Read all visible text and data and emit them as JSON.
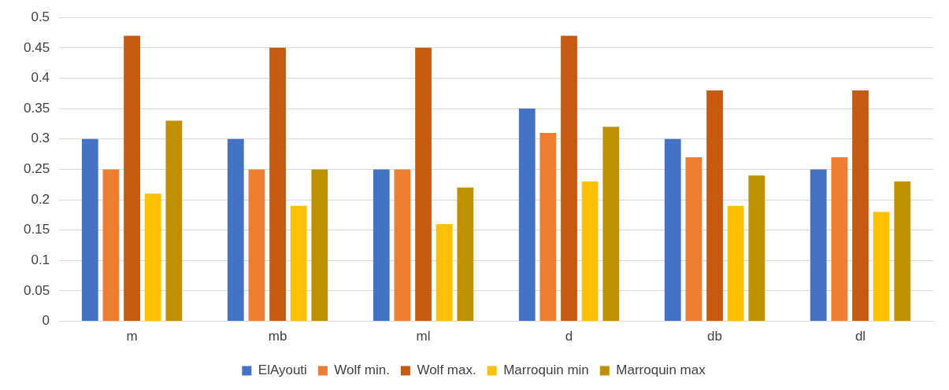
{
  "chart_data": {
    "type": "bar",
    "categories": [
      "m",
      "mb",
      "ml",
      "d",
      "db",
      "dl"
    ],
    "series": [
      {
        "name": "ElAyouti",
        "color": "#4472c4",
        "values": [
          0.3,
          0.3,
          0.25,
          0.35,
          0.3,
          0.25
        ]
      },
      {
        "name": "Wolf min.",
        "color": "#ed7d31",
        "values": [
          0.25,
          0.25,
          0.25,
          0.31,
          0.27,
          0.27
        ]
      },
      {
        "name": "Wolf max.",
        "color": "#c55a11",
        "values": [
          0.47,
          0.45,
          0.45,
          0.47,
          0.38,
          0.38
        ]
      },
      {
        "name": "Marroquin min",
        "color": "#ffc000",
        "values": [
          0.21,
          0.19,
          0.16,
          0.23,
          0.19,
          0.18
        ]
      },
      {
        "name": "Marroquin max",
        "color": "#bf9000",
        "values": [
          0.33,
          0.25,
          0.22,
          0.32,
          0.24,
          0.23
        ]
      }
    ],
    "ylim": [
      0,
      0.5
    ],
    "yticks": [
      0,
      0.05,
      0.1,
      0.15,
      0.2,
      0.25,
      0.3,
      0.35,
      0.4,
      0.45,
      0.5
    ],
    "grid": "y",
    "legend": "bottom"
  }
}
